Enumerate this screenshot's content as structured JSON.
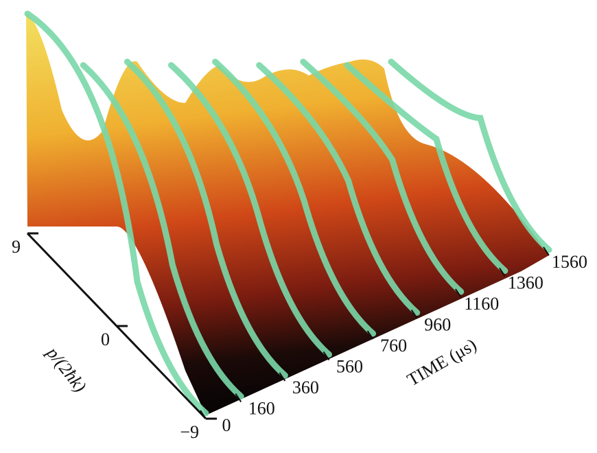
{
  "chart_data": {
    "type": "surface3d",
    "xlabel": "TIME (μs)",
    "ylabel": "p/(2ħk)",
    "xlim": [
      0,
      1560
    ],
    "xticks": [
      0,
      160,
      360,
      560,
      760,
      960,
      1160,
      1360,
      1560
    ],
    "ylim": [
      -9,
      9
    ],
    "yticks": [
      {
        "value": -9,
        "label": "−9"
      },
      0,
      9
    ]
  }
}
